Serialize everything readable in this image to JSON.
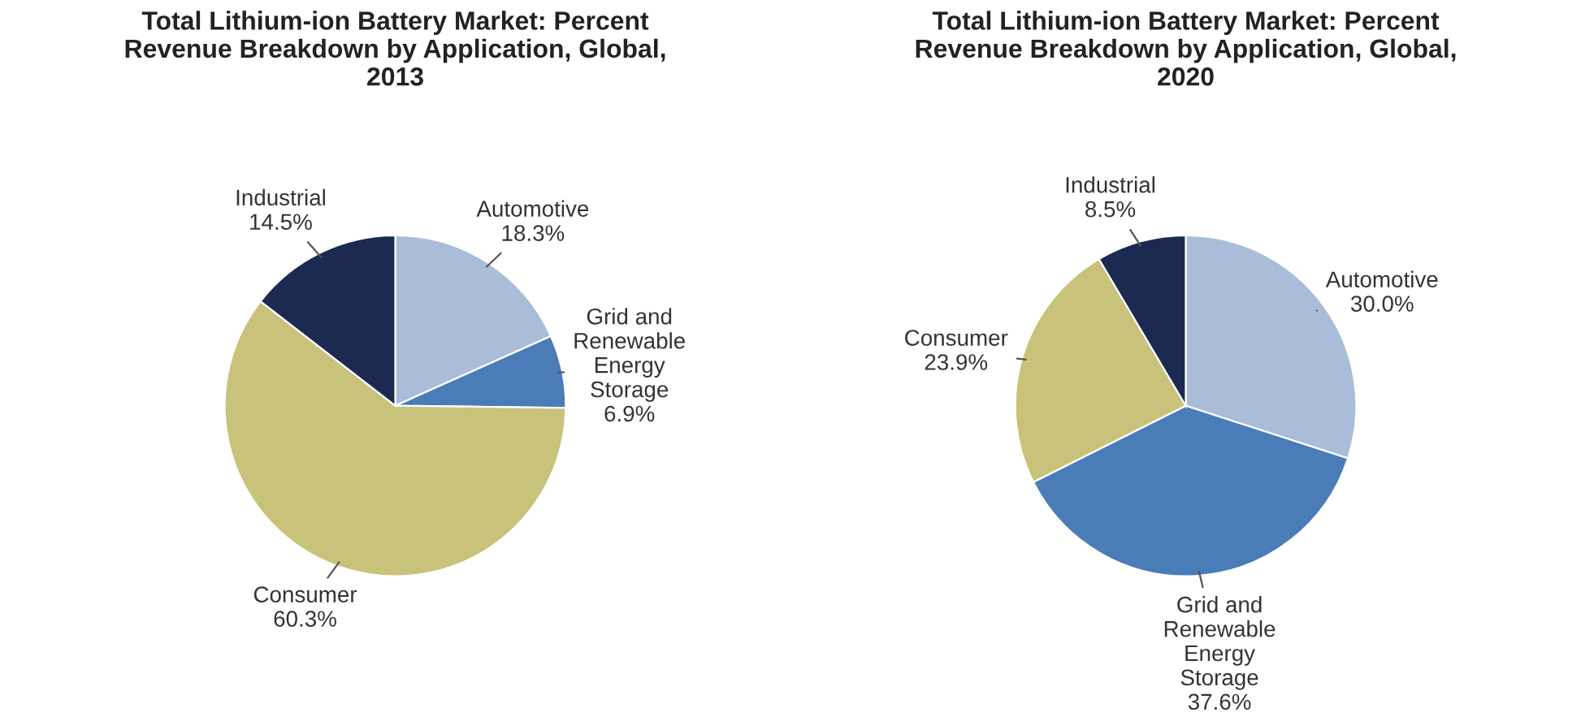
{
  "chart_data": [
    {
      "type": "pie",
      "title": "Total Lithium-ion Battery Market: Percent\nRevenue Breakdown by Application, Global,\n2013",
      "categories": [
        "Automotive",
        "Grid and\nRenewable\nEnergy\nStorage",
        "Consumer",
        "Industrial"
      ],
      "values": [
        18.3,
        6.9,
        60.3,
        14.5
      ],
      "value_labels": [
        "18.3%",
        "6.9%",
        "60.3%",
        "14.5%"
      ],
      "colors": [
        "#a9bcd8",
        "#4a7cb8",
        "#c8c27a",
        "#1c2a52"
      ]
    },
    {
      "type": "pie",
      "title": "Total Lithium-ion Battery Market: Percent\nRevenue Breakdown by Application, Global,\n2020",
      "categories": [
        "Automotive",
        "Grid and\nRenewable\nEnergy\nStorage",
        "Consumer",
        "Industrial"
      ],
      "values": [
        30.0,
        37.6,
        23.9,
        8.5
      ],
      "value_labels": [
        "30.0%",
        "37.6%",
        "23.9%",
        "8.5%"
      ],
      "colors": [
        "#a9bcd8",
        "#4a7cb8",
        "#c8c27a",
        "#1c2a52"
      ]
    }
  ]
}
